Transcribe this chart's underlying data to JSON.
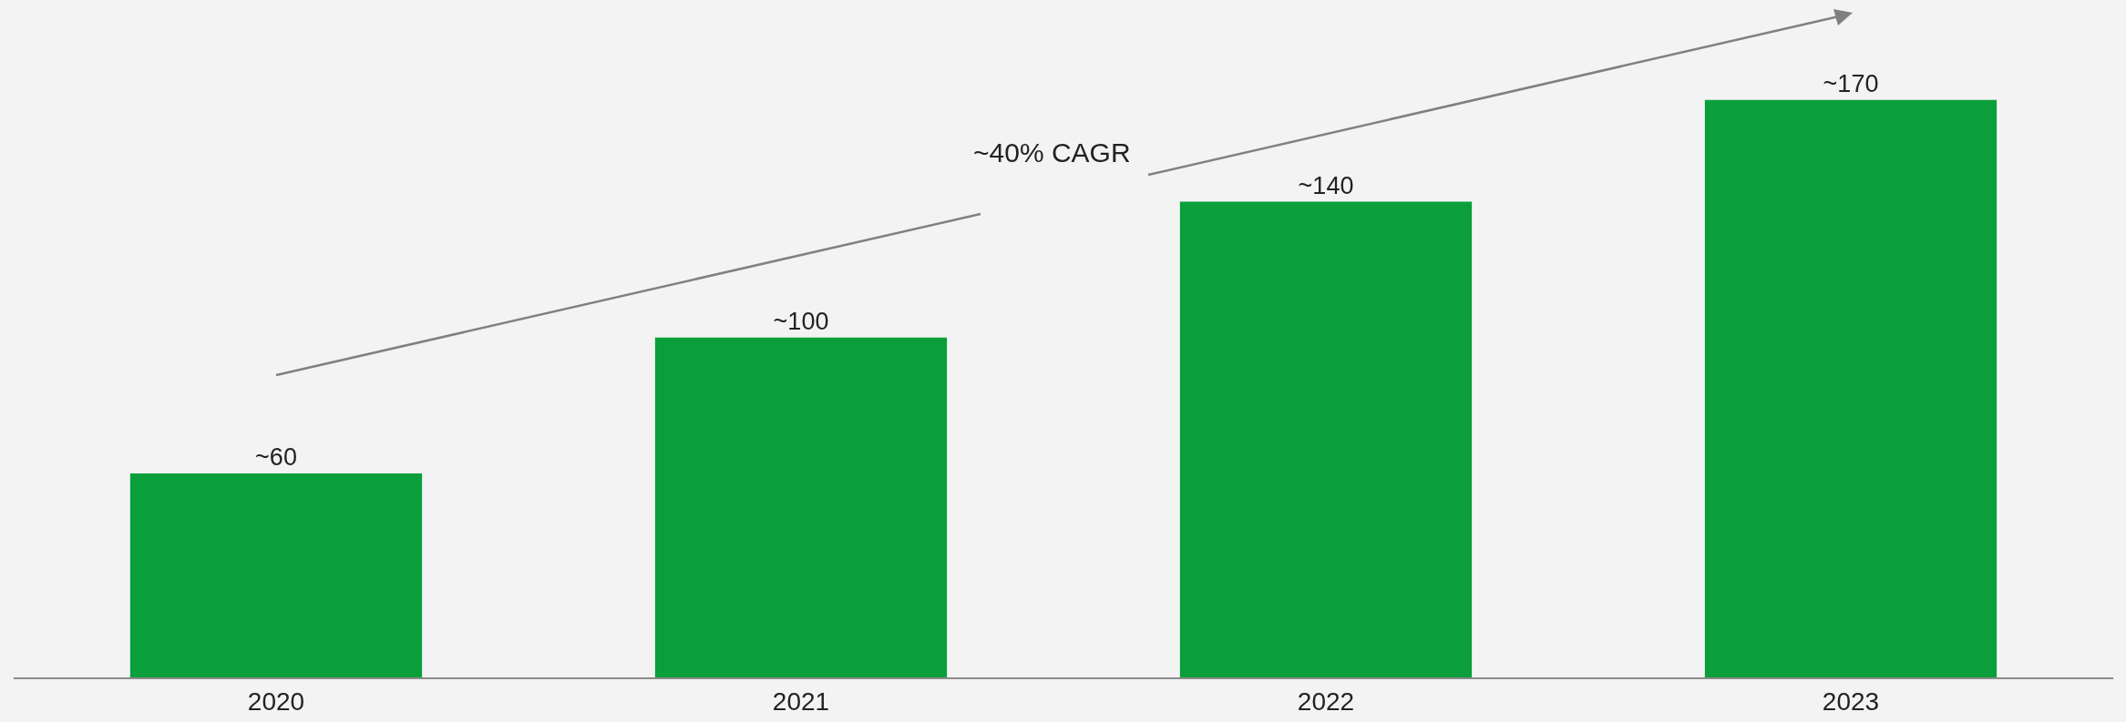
{
  "chart_data": {
    "type": "bar",
    "categories": [
      "2020",
      "2021",
      "2022",
      "2023"
    ],
    "values": [
      60,
      100,
      140,
      170
    ],
    "value_labels": [
      "~60",
      "~100",
      "~140",
      "~170"
    ],
    "color": "#0a9f3b",
    "annotations": [
      "~40% CAGR"
    ],
    "grid": false,
    "legend": false
  }
}
